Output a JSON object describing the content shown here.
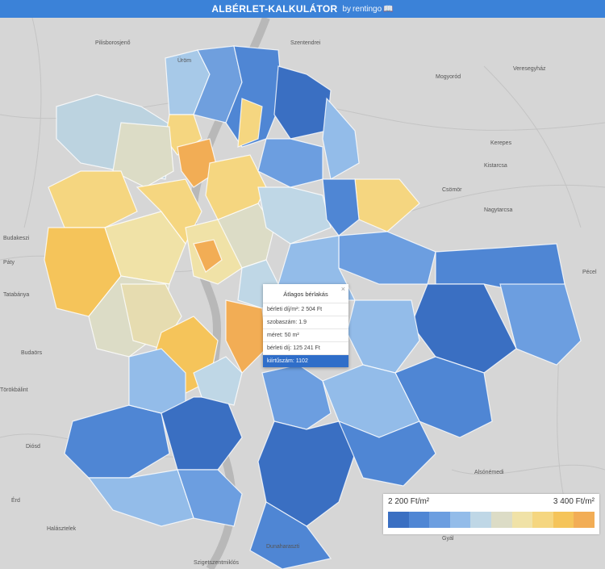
{
  "header": {
    "title": "ALBÉRLET-KALKULÁTOR",
    "brand_prefix": "by",
    "brand": "rentingo",
    "brand_icon": "book-icon",
    "bg_color": "#3b82d8"
  },
  "map": {
    "place_labels": [
      "Pilisborosjenő",
      "Budakeszi",
      "Budaörs",
      "Törökbálint",
      "Diósd",
      "Érd",
      "Szigetszentmiklós",
      "Halásztelek",
      "Kerepes",
      "Kistarcsa",
      "Pécel",
      "Gyál",
      "Üröm",
      "Csömör",
      "Nagytarcsa",
      "Alsónémedi",
      "Dunaharaszti",
      "Szentendrei",
      "Mogyoród",
      "Veresegyház",
      "Páty",
      "Tatabánya"
    ],
    "palette": {
      "low": "#3a75c9",
      "mid": "#d9dcc8",
      "high": "#f4a24a"
    }
  },
  "popup": {
    "title": "Átlagos bérlakás",
    "close": "×",
    "rows": [
      "bérleti díj/m²: 2 504 Ft",
      "szobaszám: 1.9",
      "méret: 50 m²",
      "bérleti díj: 125 241 Ft",
      "kiírtűszám: 1102"
    ]
  },
  "legend": {
    "low_label": "2 200 Ft/m²",
    "high_label": "3 400 Ft/m²",
    "colors": [
      "#3a6fc2",
      "#4f86d4",
      "#6c9ee0",
      "#93bce9",
      "#bfd7e6",
      "#dcdcc6",
      "#f0e2a7",
      "#f5d680",
      "#f5c45a",
      "#f2ad55"
    ]
  }
}
